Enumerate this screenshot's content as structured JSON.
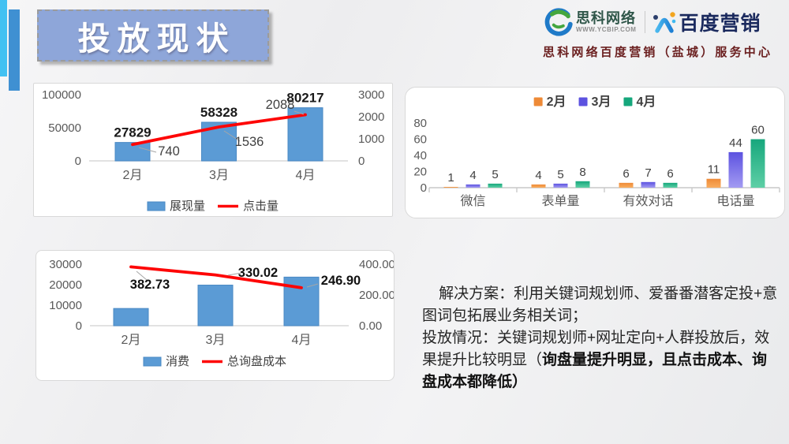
{
  "slide": {
    "title": "投放现状",
    "header": {
      "logo1": {
        "name": "思科网络",
        "url": "WWW.YCBIP.COM"
      },
      "logo2": {
        "name": "百度营销"
      },
      "subtitle": "思科网络百度营销（盐城）服务中心"
    },
    "solution": {
      "normal": "解决方案：利用关键词规划师、爱番番潜客定投+意图词包拓展业务相关词；\n投放情况：关键词规划师+网址定向+人群投放后，效果提升比较明显（",
      "bold": "询盘量提升明显，且点击成本、询盘成本都降低）"
    }
  },
  "chart_data": [
    {
      "id": "impressions_clicks",
      "type": "bar+line",
      "categories": [
        "2月",
        "3月",
        "4月"
      ],
      "series": [
        {
          "name": "展现量",
          "type": "bar",
          "values": [
            27829,
            58328,
            80217
          ],
          "labels": [
            "27829",
            "58328",
            "80217"
          ],
          "color": "#5b9bd5",
          "axis": "left"
        },
        {
          "name": "点击量",
          "type": "line",
          "values": [
            740,
            1536,
            2088
          ],
          "labels": [
            "740",
            "1536",
            "2088"
          ],
          "color": "#fe0505",
          "axis": "right"
        }
      ],
      "left_axis": {
        "ticks": [
          "0",
          "50000",
          "100000"
        ],
        "max": 100000
      },
      "right_axis": {
        "ticks": [
          "0",
          "1000",
          "2000",
          "3000"
        ],
        "max": 3000
      },
      "grid": false,
      "legend_position": "bottom"
    },
    {
      "id": "leads_by_channel",
      "type": "bar",
      "categories": [
        "微信",
        "表单量",
        "有效对话",
        "电话量"
      ],
      "series": [
        {
          "name": "2月",
          "values": [
            1,
            4,
            6,
            11
          ],
          "color": "#ee8a37",
          "color_light": "#f9ad5f"
        },
        {
          "name": "3月",
          "values": [
            4,
            5,
            7,
            44
          ],
          "color": "#5c52e0",
          "color_light": "#a39bf2"
        },
        {
          "name": "4月",
          "values": [
            5,
            8,
            6,
            60
          ],
          "color": "#16a77c",
          "color_light": "#5ecfa6"
        }
      ],
      "y_axis": {
        "ticks": [
          "0",
          "20",
          "40",
          "60",
          "80"
        ],
        "max": 80
      },
      "grid": false,
      "legend_position": "top"
    },
    {
      "id": "cost_inquiry",
      "type": "bar+line",
      "categories": [
        "2月",
        "3月",
        "4月"
      ],
      "series": [
        {
          "name": "消费",
          "type": "bar",
          "values": [
            8400,
            19800,
            23700
          ],
          "labels": null,
          "color": "#5b9bd5",
          "axis": "left"
        },
        {
          "name": "总询盘成本",
          "type": "line",
          "values": [
            382.73,
            330.02,
            246.9
          ],
          "labels": [
            "382.73",
            "330.02",
            "246.90"
          ],
          "color": "#fe0505",
          "axis": "right"
        }
      ],
      "left_axis": {
        "ticks": [
          "0",
          "10000",
          "20000",
          "30000"
        ],
        "max": 30000
      },
      "right_axis": {
        "ticks": [
          "0.00",
          "200.00",
          "400.00"
        ],
        "max": 400
      },
      "grid": false,
      "legend_position": "bottom"
    }
  ]
}
